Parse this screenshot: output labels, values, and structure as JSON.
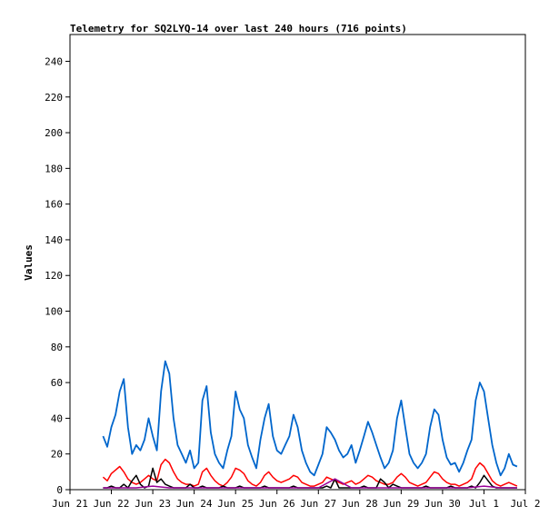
{
  "chart_data": {
    "type": "line",
    "title": "Telemetry for SQ2LYQ-14 over last 240 hours (716 points)",
    "xlabel": "",
    "ylabel": "Values",
    "xlim": [
      "Jun 21",
      "Jul 2"
    ],
    "x_ticks": [
      "Jun 21",
      "Jun 22",
      "Jun 23",
      "Jun 24",
      "Jun 25",
      "Jun 26",
      "Jun 27",
      "Jun 28",
      "Jun 29",
      "Jun 30",
      "Jul 1",
      "Jul 2"
    ],
    "ylim": [
      0,
      255
    ],
    "y_ticks": [
      0,
      20,
      40,
      60,
      80,
      100,
      120,
      140,
      160,
      180,
      200,
      220,
      240
    ],
    "grid": false,
    "legend": "none",
    "x_unit": "days after Jun 21",
    "series": [
      {
        "color": "#0066cc",
        "x": [
          0.8,
          0.9,
          1.0,
          1.1,
          1.2,
          1.3,
          1.4,
          1.5,
          1.6,
          1.7,
          1.8,
          1.9,
          2.0,
          2.1,
          2.2,
          2.3,
          2.4,
          2.5,
          2.6,
          2.7,
          2.8,
          2.9,
          3.0,
          3.1,
          3.2,
          3.3,
          3.4,
          3.5,
          3.6,
          3.7,
          3.8,
          3.9,
          4.0,
          4.1,
          4.2,
          4.3,
          4.4,
          4.5,
          4.6,
          4.7,
          4.8,
          4.9,
          5.0,
          5.1,
          5.2,
          5.3,
          5.4,
          5.5,
          5.6,
          5.7,
          5.8,
          5.9,
          6.0,
          6.1,
          6.2,
          6.3,
          6.4,
          6.5,
          6.6,
          6.7,
          6.8,
          6.9,
          7.0,
          7.1,
          7.2,
          7.3,
          7.4,
          7.5,
          7.6,
          7.7,
          7.8,
          7.9,
          8.0,
          8.1,
          8.2,
          8.3,
          8.4,
          8.5,
          8.6,
          8.7,
          8.8,
          8.9,
          9.0,
          9.1,
          9.2,
          9.3,
          9.4,
          9.5,
          9.6,
          9.7,
          9.8,
          9.9,
          10.0,
          10.1,
          10.2,
          10.3,
          10.4,
          10.5,
          10.6,
          10.7,
          10.8
        ],
        "y": [
          30,
          24,
          35,
          42,
          55,
          62,
          35,
          20,
          25,
          22,
          28,
          40,
          30,
          22,
          55,
          72,
          65,
          40,
          25,
          20,
          15,
          22,
          12,
          15,
          50,
          58,
          32,
          20,
          15,
          12,
          22,
          30,
          55,
          45,
          40,
          25,
          18,
          12,
          28,
          40,
          48,
          30,
          22,
          20,
          25,
          30,
          42,
          35,
          22,
          15,
          10,
          8,
          14,
          20,
          35,
          32,
          28,
          22,
          18,
          20,
          25,
          15,
          22,
          30,
          38,
          32,
          25,
          18,
          12,
          15,
          22,
          40,
          50,
          35,
          20,
          15,
          12,
          15,
          20,
          35,
          45,
          42,
          28,
          18,
          14,
          15,
          10,
          15,
          22,
          28,
          50,
          60,
          55,
          40,
          25,
          15,
          8,
          12,
          20,
          14,
          13
        ]
      },
      {
        "color": "#ff0000",
        "x": [
          0.8,
          0.9,
          1.0,
          1.1,
          1.2,
          1.3,
          1.4,
          1.5,
          1.6,
          1.7,
          1.8,
          1.9,
          2.0,
          2.1,
          2.2,
          2.3,
          2.4,
          2.5,
          2.6,
          2.7,
          2.8,
          2.9,
          3.0,
          3.1,
          3.2,
          3.3,
          3.4,
          3.5,
          3.6,
          3.7,
          3.8,
          3.9,
          4.0,
          4.1,
          4.2,
          4.3,
          4.4,
          4.5,
          4.6,
          4.7,
          4.8,
          4.9,
          5.0,
          5.1,
          5.2,
          5.3,
          5.4,
          5.5,
          5.6,
          5.7,
          5.8,
          5.9,
          6.0,
          6.1,
          6.2,
          6.3,
          6.4,
          6.5,
          6.6,
          6.7,
          6.8,
          6.9,
          7.0,
          7.1,
          7.2,
          7.3,
          7.4,
          7.5,
          7.6,
          7.7,
          7.8,
          7.9,
          8.0,
          8.1,
          8.2,
          8.3,
          8.4,
          8.5,
          8.6,
          8.7,
          8.8,
          8.9,
          9.0,
          9.1,
          9.2,
          9.3,
          9.4,
          9.5,
          9.6,
          9.7,
          9.8,
          9.9,
          10.0,
          10.1,
          10.2,
          10.3,
          10.4,
          10.5,
          10.6,
          10.7,
          10.8
        ],
        "y": [
          7,
          5,
          9,
          11,
          13,
          10,
          6,
          4,
          3,
          4,
          6,
          8,
          6,
          5,
          14,
          17,
          15,
          10,
          6,
          4,
          3,
          3,
          2,
          3,
          10,
          12,
          8,
          5,
          3,
          2,
          4,
          7,
          12,
          11,
          9,
          5,
          3,
          2,
          4,
          8,
          10,
          7,
          5,
          4,
          5,
          6,
          8,
          7,
          4,
          3,
          2,
          2,
          3,
          4,
          7,
          6,
          5,
          4,
          3,
          4,
          5,
          3,
          4,
          6,
          8,
          7,
          5,
          4,
          3,
          3,
          4,
          7,
          9,
          7,
          4,
          3,
          2,
          3,
          4,
          7,
          10,
          9,
          6,
          4,
          3,
          3,
          2,
          3,
          4,
          6,
          12,
          15,
          13,
          9,
          5,
          3,
          2,
          3,
          4,
          3,
          2
        ]
      },
      {
        "color": "#000000",
        "x": [
          0.8,
          0.9,
          1.0,
          1.1,
          1.2,
          1.3,
          1.4,
          1.5,
          1.6,
          1.7,
          1.8,
          1.9,
          2.0,
          2.1,
          2.2,
          2.3,
          2.4,
          2.5,
          2.6,
          2.7,
          2.8,
          2.9,
          3.0,
          3.1,
          3.2,
          3.3,
          3.4,
          3.5,
          3.6,
          3.7,
          3.8,
          3.9,
          4.0,
          4.1,
          4.2,
          4.3,
          4.4,
          4.5,
          4.6,
          4.7,
          4.8,
          4.9,
          5.0,
          5.1,
          5.2,
          5.3,
          5.4,
          5.5,
          5.6,
          5.7,
          5.8,
          5.9,
          6.0,
          6.1,
          6.2,
          6.3,
          6.4,
          6.5,
          6.6,
          6.7,
          6.8,
          6.9,
          7.0,
          7.1,
          7.2,
          7.3,
          7.4,
          7.5,
          7.6,
          7.7,
          7.8,
          7.9,
          8.0,
          8.1,
          8.2,
          8.3,
          8.4,
          8.5,
          8.6,
          8.7,
          8.8,
          8.9,
          9.0,
          9.1,
          9.2,
          9.3,
          9.4,
          9.5,
          9.6,
          9.7,
          9.8,
          9.9,
          10.0,
          10.1,
          10.2,
          10.3,
          10.4,
          10.5,
          10.6,
          10.7,
          10.8
        ],
        "y": [
          1,
          1,
          2,
          1,
          1,
          3,
          1,
          5,
          8,
          3,
          1,
          2,
          12,
          4,
          6,
          3,
          2,
          1,
          1,
          1,
          1,
          3,
          1,
          1,
          2,
          1,
          1,
          1,
          1,
          2,
          1,
          1,
          1,
          2,
          1,
          1,
          1,
          1,
          1,
          2,
          1,
          1,
          1,
          1,
          1,
          1,
          2,
          1,
          1,
          1,
          1,
          1,
          1,
          1,
          2,
          1,
          6,
          1,
          1,
          1,
          1,
          1,
          1,
          2,
          1,
          1,
          1,
          6,
          4,
          1,
          3,
          2,
          1,
          1,
          1,
          1,
          1,
          1,
          2,
          1,
          1,
          1,
          1,
          1,
          2,
          1,
          1,
          1,
          1,
          2,
          1,
          4,
          8,
          5,
          2,
          1,
          1,
          1,
          1,
          1,
          1
        ]
      },
      {
        "color": "#990099",
        "x": [
          0.8,
          1.6,
          2.0,
          2.4,
          2.8,
          3.2,
          3.6,
          4.0,
          4.4,
          4.8,
          5.2,
          5.6,
          6.0,
          6.4,
          6.8,
          7.2,
          7.6,
          8.0,
          8.4,
          8.8,
          9.2,
          9.6,
          10.0,
          10.4,
          10.8
        ],
        "y": [
          1,
          1,
          2,
          1,
          1,
          1,
          1,
          1,
          1,
          1,
          1,
          1,
          1,
          6,
          1,
          1,
          1,
          1,
          1,
          1,
          1,
          1,
          2,
          1,
          1
        ]
      }
    ]
  }
}
